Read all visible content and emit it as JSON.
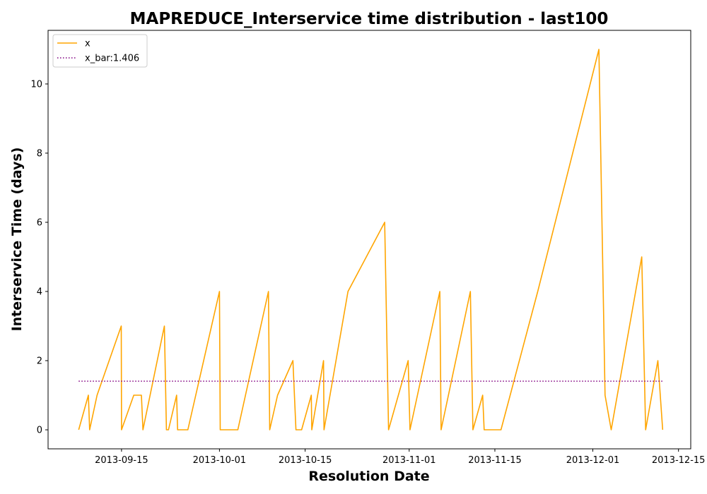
{
  "chart_data": {
    "type": "line",
    "title": "MAPREDUCE_Interservice time distribution - last100",
    "xlabel": "Resolution Date",
    "ylabel": "Interservice Time (days)",
    "x_type": "date",
    "xlim": [
      "2013-09-03",
      "2013-12-17"
    ],
    "ylim": [
      -0.55,
      11.55
    ],
    "x_ticks": [
      "2013-09-15",
      "2013-10-01",
      "2013-10-15",
      "2013-11-01",
      "2013-11-15",
      "2013-12-01",
      "2013-12-15"
    ],
    "y_ticks": [
      0,
      2,
      4,
      6,
      8,
      10
    ],
    "grid": false,
    "legend_position": "top-left",
    "colors": {
      "x": "#ffa500",
      "x_bar": "#800080"
    },
    "series": [
      {
        "name": "x",
        "style": "solid",
        "points": [
          [
            "2013-09-08",
            0
          ],
          [
            "2013-09-09T14:00",
            1
          ],
          [
            "2013-09-09T19:00",
            0
          ],
          [
            "2013-09-11",
            1
          ],
          [
            "2013-09-14T23:00",
            3
          ],
          [
            "2013-09-15",
            0
          ],
          [
            "2013-09-17",
            1
          ],
          [
            "2013-09-18T06:00",
            1
          ],
          [
            "2013-09-18T12:00",
            0
          ],
          [
            "2013-09-22",
            3
          ],
          [
            "2013-09-22T08:00",
            0
          ],
          [
            "2013-09-22T16:00",
            0
          ],
          [
            "2013-09-24",
            1
          ],
          [
            "2013-09-24T04:00",
            0
          ],
          [
            "2013-09-25T20:00",
            0
          ],
          [
            "2013-10-01",
            4
          ],
          [
            "2013-10-01T03:00",
            0
          ],
          [
            "2013-10-04",
            0
          ],
          [
            "2013-10-09",
            4
          ],
          [
            "2013-10-09T05:00",
            0
          ],
          [
            "2013-10-10T12:00",
            1
          ],
          [
            "2013-10-13",
            2
          ],
          [
            "2013-10-13T12:00",
            0
          ],
          [
            "2013-10-14T10:00",
            0
          ],
          [
            "2013-10-16",
            1
          ],
          [
            "2013-10-16T02:00",
            0
          ],
          [
            "2013-10-18",
            2
          ],
          [
            "2013-10-18T02:00",
            0
          ],
          [
            "2013-10-22",
            4
          ],
          [
            "2013-10-28",
            6
          ],
          [
            "2013-10-28T15:00",
            0
          ],
          [
            "2013-10-31T20:00",
            2
          ],
          [
            "2013-11-01T03:00",
            0
          ],
          [
            "2013-11-06",
            4
          ],
          [
            "2013-11-06T05:00",
            0
          ],
          [
            "2013-11-11",
            4
          ],
          [
            "2013-11-11T10:00",
            0
          ],
          [
            "2013-11-13",
            1
          ],
          [
            "2013-11-13T06:00",
            0
          ],
          [
            "2013-11-15",
            0
          ],
          [
            "2013-11-16",
            0
          ],
          [
            "2013-11-22",
            4
          ],
          [
            "2013-12-02",
            11
          ],
          [
            "2013-12-03",
            1
          ],
          [
            "2013-12-04",
            0
          ],
          [
            "2013-12-09",
            5
          ],
          [
            "2013-12-09T15:00",
            0
          ],
          [
            "2013-12-11T15:00",
            2
          ],
          [
            "2013-12-12T10:00",
            0
          ]
        ]
      },
      {
        "name": "x_bar:1.406",
        "style": "dotted",
        "points": [
          [
            "2013-09-08",
            1.406
          ],
          [
            "2013-12-12T10:00",
            1.406
          ]
        ]
      }
    ]
  }
}
